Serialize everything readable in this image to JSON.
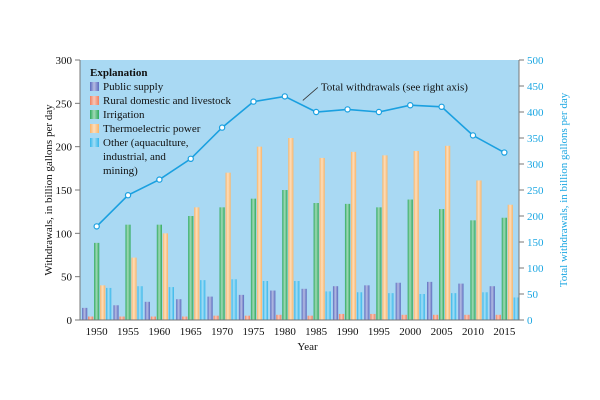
{
  "chart_data": {
    "type": "bar",
    "title": "",
    "xlabel": "Year",
    "ylabel": "Withdrawals, in billion gallons per day",
    "y2label": "Total withdrawals, in billion gallons per day",
    "ylim": [
      0,
      300
    ],
    "y2lim": [
      0,
      500
    ],
    "yticks": [
      "0",
      "50",
      "100",
      "150",
      "200",
      "250",
      "300"
    ],
    "y2ticks": [
      "0",
      "50",
      "100",
      "150",
      "200",
      "250",
      "300",
      "350",
      "400",
      "450",
      "500"
    ],
    "categories": [
      "1950",
      "1955",
      "1960",
      "1965",
      "1970",
      "1975",
      "1980",
      "1985",
      "1990",
      "1995",
      "2000",
      "2005",
      "2010",
      "2015"
    ],
    "legend": {
      "title": "Explanation",
      "placement": "top-left",
      "entries": [
        "Public supply",
        "Rural domestic and livestock",
        "Irrigation",
        "Thermoelectric power",
        "Other (aquaculture, industrial, and mining)"
      ],
      "entry_lines": [
        [
          "Public supply"
        ],
        [
          "Rural domestic and livestock"
        ],
        [
          "Irrigation"
        ],
        [
          "Thermoelectric power"
        ],
        [
          "Other (aquaculture,",
          "industrial, and",
          "mining)"
        ]
      ]
    },
    "series": [
      {
        "name": "Public supply",
        "axis": "left",
        "color": "#5b6bbf",
        "values": [
          14,
          17,
          21,
          24,
          27,
          29,
          34,
          36,
          39,
          40,
          43,
          44,
          42,
          39
        ]
      },
      {
        "name": "Rural domestic and livestock",
        "axis": "left",
        "color": "#f08060",
        "values": [
          4,
          4,
          4,
          4,
          5,
          5,
          6,
          5,
          7,
          7,
          6,
          6,
          6,
          6
        ]
      },
      {
        "name": "Irrigation",
        "axis": "left",
        "color": "#2eaa5e",
        "values": [
          89,
          110,
          110,
          120,
          130,
          140,
          150,
          135,
          134,
          130,
          139,
          128,
          115,
          118
        ]
      },
      {
        "name": "Thermoelectric power",
        "axis": "left",
        "color": "#f9b56a",
        "values": [
          40,
          72,
          100,
          130,
          170,
          200,
          210,
          187,
          194,
          190,
          195,
          201,
          161,
          133
        ]
      },
      {
        "name": "Other (aquaculture, industrial, and mining)",
        "axis": "left",
        "color": "#35b6ea",
        "values": [
          37,
          39,
          38,
          46,
          47,
          45,
          45,
          33,
          32,
          31,
          30,
          31,
          32,
          26
        ]
      },
      {
        "name": "Total withdrawals",
        "axis": "right",
        "type": "line",
        "color": "#1aa0e0",
        "values": [
          180,
          240,
          270,
          310,
          370,
          420,
          430,
          400,
          405,
          400,
          413,
          410,
          355,
          322
        ]
      }
    ],
    "annotations": [
      {
        "text": "Total withdrawals (see right axis)",
        "target_series": "Total withdrawals",
        "target_category": "1980"
      }
    ],
    "grid": false,
    "plot_background": "#a9d9f3"
  }
}
